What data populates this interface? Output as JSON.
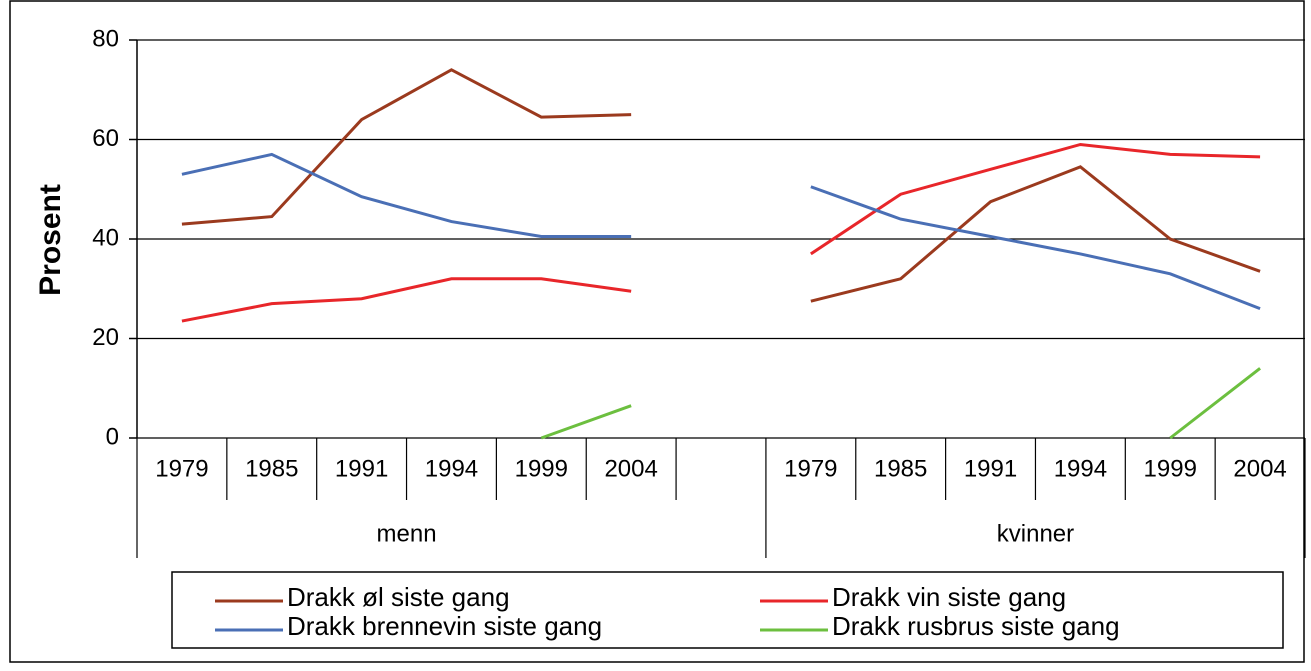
{
  "chart_data": {
    "type": "line",
    "ylabel": "Prosent",
    "categories": [
      "1979",
      "1985",
      "1991",
      "1994",
      "1999",
      "2004",
      null,
      "1979",
      "1985",
      "1991",
      "1994",
      "1999",
      "2004"
    ],
    "groups": [
      "menn",
      "kvinner"
    ],
    "series": [
      {
        "name": "Drakk øl siste gang",
        "color": "#9b3a1e",
        "values": [
          43,
          44.5,
          64,
          74,
          64.5,
          65,
          null,
          27.5,
          32,
          47.5,
          54.5,
          40,
          33.5
        ]
      },
      {
        "name": "Drakk vin siste gang",
        "color": "#e8262a",
        "values": [
          23.5,
          27,
          28,
          32,
          32,
          29.5,
          null,
          37,
          49,
          54,
          59,
          57,
          56.5
        ]
      },
      {
        "name": "Drakk brennevin siste gang",
        "color": "#4a6fb5",
        "values": [
          53,
          57,
          48.5,
          43.5,
          40.5,
          40.5,
          null,
          50.5,
          44,
          40.5,
          37,
          33,
          26
        ]
      },
      {
        "name": "Drakk rusbrus siste gang",
        "color": "#6cbf3f",
        "values": [
          null,
          null,
          null,
          null,
          0,
          6.5,
          null,
          null,
          null,
          null,
          null,
          0,
          14
        ]
      }
    ],
    "ylim": [
      0,
      80
    ],
    "yticks": [
      0,
      20,
      40,
      60,
      80
    ],
    "grid": true,
    "legend": "bottom"
  }
}
